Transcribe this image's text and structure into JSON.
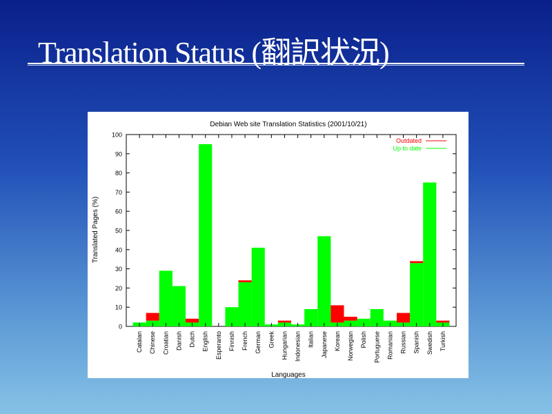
{
  "slide": {
    "title": "Translation Status (翻訳状況)"
  },
  "chart_data": {
    "type": "bar",
    "stacked": true,
    "title": "Debian Web site Translation Statistics (2001/10/21)",
    "xlabel": "Languages",
    "ylabel": "Translated Pages (%)",
    "ylim": [
      0,
      100
    ],
    "yticks": [
      0,
      10,
      20,
      30,
      40,
      50,
      60,
      70,
      80,
      90,
      100
    ],
    "legend_position": "top-right",
    "categories": [
      "Catalan",
      "Chinese",
      "Croatian",
      "Danish",
      "Dutch",
      "English",
      "Esperanto",
      "Finnish",
      "French",
      "German",
      "Greek",
      "Hungarian",
      "Indonesian",
      "Italian",
      "Japanese",
      "Korean",
      "Norwegian",
      "Polish",
      "Portuguese",
      "Romanian",
      "Russian",
      "Spanish",
      "Swedish",
      "Turkish"
    ],
    "series": [
      {
        "name": "Up to date",
        "color": "#00ff00",
        "values": [
          2,
          3,
          29,
          21,
          2,
          95,
          0,
          10,
          23,
          41,
          1,
          2,
          1,
          9,
          47,
          2,
          3,
          4,
          9,
          3,
          2,
          33,
          75,
          2
        ]
      },
      {
        "name": "Outdated",
        "color": "#ff0000",
        "values": [
          0,
          4,
          0,
          0,
          2,
          0,
          0,
          0,
          1,
          0,
          0,
          1,
          0,
          0,
          0,
          9,
          2,
          0,
          0,
          0,
          5,
          1,
          0,
          1
        ]
      }
    ]
  }
}
